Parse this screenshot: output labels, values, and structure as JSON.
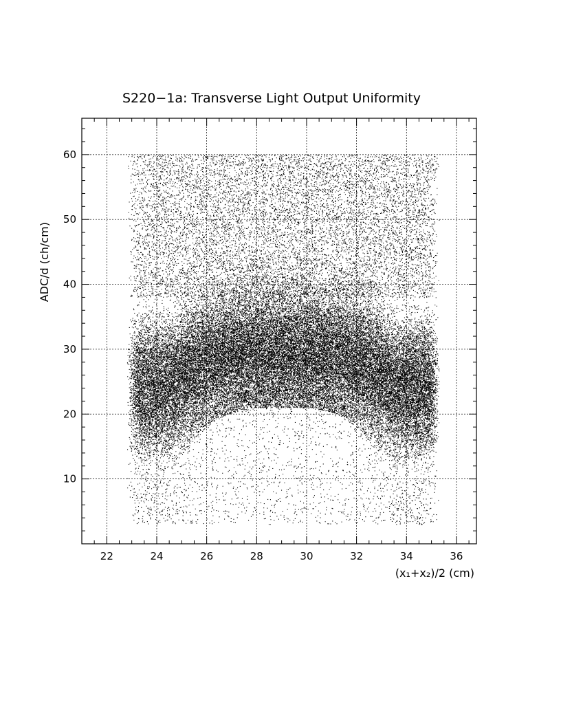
{
  "chart_data": {
    "type": "scatter",
    "title": "S220−1a: Transverse Light Output Uniformity",
    "xlabel": "(x₁+x₂)/2 (cm)",
    "ylabel": "ADC/d (ch/cm)",
    "xlim": [
      21,
      36.8
    ],
    "ylim": [
      0,
      65.6
    ],
    "x_ticks": [
      22,
      24,
      26,
      28,
      30,
      32,
      34,
      36
    ],
    "y_ticks": [
      10,
      20,
      30,
      40,
      50,
      60
    ],
    "grid": true,
    "legend": "none",
    "series": [
      {
        "points_approx": 60000,
        "x_range": [
          22.8,
          35.3
        ],
        "y_range": [
          3,
          60
        ],
        "dense_band": {
          "x_range": [
            24.5,
            33.5
          ],
          "y_center": 28,
          "y_low_edge_at_center": 21,
          "y_low_edge_at_sides": 10
        },
        "color": "#000000"
      }
    ]
  }
}
